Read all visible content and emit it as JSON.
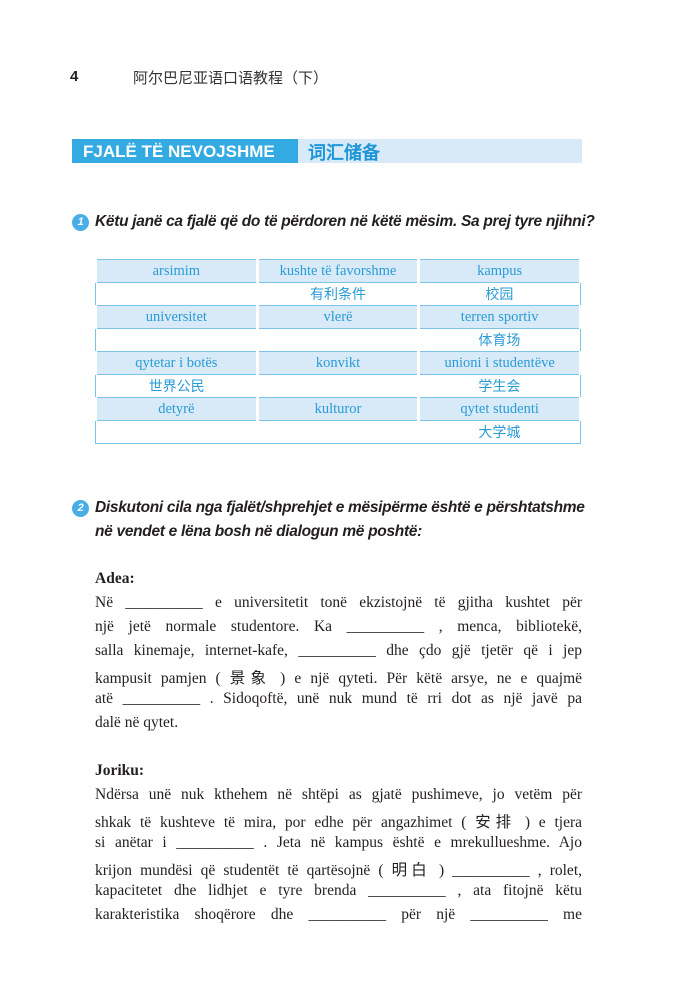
{
  "header": {
    "page_number": "4",
    "book_title": "阿尔巴尼亚语口语教程（下）"
  },
  "section": {
    "title_sq": "FJALË TË NEVOJSHME",
    "title_zh": "词汇储备",
    "accent": "#33abe2"
  },
  "exercise1": {
    "number": "1",
    "prompt": "Këtu janë ca fjalë që do të përdoren në këtë mësim. Sa prej tyre njihni?",
    "rows": [
      [
        "arsimim",
        "kushte të favorshme",
        "kampus"
      ],
      [
        "",
        "有利条件",
        "校园"
      ],
      [
        "universitet",
        "vlerë",
        "terren sportiv"
      ],
      [
        "",
        "",
        "体育场"
      ],
      [
        "qytetar i botës",
        "konvikt",
        "unioni i studentëve"
      ],
      [
        "世界公民",
        "",
        "学生会"
      ],
      [
        "detyrë",
        "kulturor",
        "qytet studenti"
      ],
      [
        "",
        "",
        "大学城"
      ]
    ]
  },
  "exercise2": {
    "number": "2",
    "prompt_lines": [
      "Diskutoni cila nga fjalët/shprehjet e mësipërme është e përshtatshme",
      "në vendet e lëna bosh në dialogun më poshtë:"
    ]
  },
  "dialogue": [
    {
      "speaker": "Adea:",
      "lines": [
        "Në __________ e universitetit tonë ekzistojnë të gjitha kushtet për",
        "një jetë normale studentore. Ka __________ , menca, bibliotekë,",
        "salla kinemaje, internet-kafe, __________ dhe çdo gjë tjetër që i jep",
        "kampusit pamjen ( 景象 ) e një qyteti. Për këtë arsye, ne e quajmë",
        "atë __________ . Sidoqoftë, unë nuk mund të rri dot as një javë pa",
        "dalë në qytet."
      ]
    },
    {
      "speaker": "Joriku:",
      "lines": [
        "Ndërsa unë nuk kthehem në shtëpi as gjatë pushimeve, jo vetëm për",
        "shkak të kushteve të mira, por edhe për angazhimet ( 安排 ) e tjera",
        "si anëtar i __________ . Jeta në kampus është e mrekullueshme. Ajo",
        "krijon mundësi që studentët të qartësojnë ( 明白 ) __________ , rolet,",
        "kapacitetet dhe lidhjet e tyre brenda __________ , ata fitojnë këtu",
        "karakteristika shoqërore dhe __________ për një __________ me"
      ]
    }
  ]
}
